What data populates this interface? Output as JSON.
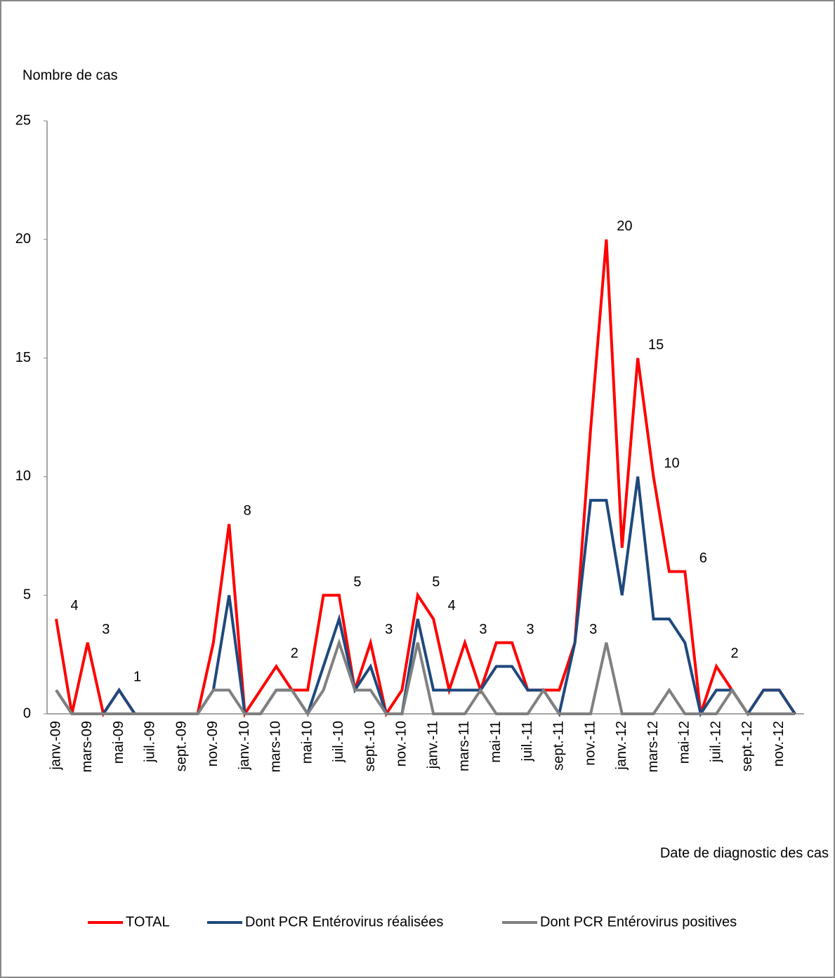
{
  "chart_data": {
    "type": "line",
    "y_axis_label": "Nombre de cas",
    "x_axis_label": "Date de diagnostic des cas",
    "categories": [
      "janv.-09",
      null,
      "mars-09",
      null,
      "mai-09",
      null,
      "juil.-09",
      null,
      "sept.-09",
      null,
      "nov.-09",
      null,
      "janv.-10",
      null,
      "mars-10",
      null,
      "mai-10",
      null,
      "juil.-10",
      null,
      "sept.-10",
      null,
      "nov.-10",
      null,
      "janv.-11",
      null,
      "mars-11",
      null,
      "mai-11",
      null,
      "juil.-11",
      null,
      "sept.-11",
      null,
      "nov.-11",
      null,
      "janv.-12",
      null,
      "mars-12",
      null,
      "mai-12",
      null,
      "juil.-12",
      null,
      "sept.-12",
      null,
      "nov.-12",
      null
    ],
    "series": [
      {
        "name": "TOTAL",
        "color": "#ff0000",
        "values": [
          4,
          0,
          3,
          0,
          1,
          0,
          0,
          0,
          0,
          0,
          3,
          8,
          0,
          1,
          2,
          1,
          1,
          5,
          5,
          1,
          3,
          0,
          1,
          5,
          4,
          1,
          3,
          1,
          3,
          3,
          1,
          1,
          1,
          3,
          12,
          20,
          7,
          15,
          10,
          6,
          6,
          0,
          2,
          1,
          0,
          1,
          1,
          0
        ],
        "value_labels": [
          "4",
          null,
          "3",
          null,
          "1",
          null,
          null,
          null,
          null,
          null,
          null,
          "8",
          null,
          null,
          "2",
          null,
          null,
          null,
          "5",
          null,
          "3",
          null,
          null,
          "5",
          "4",
          null,
          "3",
          null,
          null,
          "3",
          null,
          null,
          null,
          "3",
          null,
          "20",
          null,
          "15",
          "10",
          null,
          "6",
          null,
          "2",
          null,
          null,
          null,
          null,
          null
        ]
      },
      {
        "name": "Dont PCR Entérovirus réalisées",
        "color": "#1f497d",
        "values": [
          1,
          0,
          0,
          0,
          1,
          0,
          0,
          0,
          0,
          0,
          1,
          5,
          0,
          0,
          1,
          1,
          0,
          2,
          4,
          1,
          2,
          0,
          0,
          4,
          1,
          1,
          1,
          1,
          2,
          2,
          1,
          1,
          0,
          3,
          9,
          9,
          5,
          10,
          4,
          4,
          3,
          0,
          1,
          1,
          0,
          1,
          1,
          0
        ]
      },
      {
        "name": "Dont PCR Entérovirus positives",
        "color": "#808080",
        "values": [
          1,
          0,
          0,
          0,
          0,
          0,
          0,
          0,
          0,
          0,
          1,
          1,
          0,
          0,
          1,
          1,
          0,
          1,
          3,
          1,
          1,
          0,
          0,
          3,
          0,
          0,
          0,
          1,
          0,
          0,
          0,
          1,
          0,
          0,
          0,
          3,
          0,
          0,
          0,
          1,
          0,
          0,
          0,
          1,
          0,
          0,
          0,
          0
        ]
      }
    ],
    "ylim": [
      0,
      25
    ],
    "yticks": [
      0,
      5,
      10,
      15,
      20,
      25
    ],
    "grid": false,
    "legend": "bottom"
  }
}
